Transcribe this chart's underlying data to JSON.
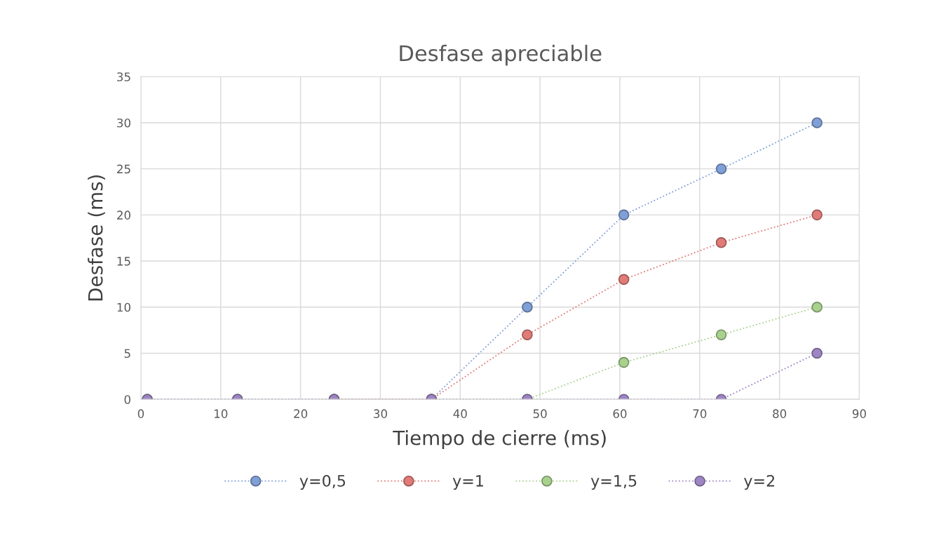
{
  "chart_data": {
    "type": "line",
    "title": "Desfase apreciable",
    "xlabel": "Tiempo de cierre (ms)",
    "ylabel": "Desfase (ms)",
    "x": [
      0.8,
      12.1,
      24.2,
      36.4,
      48.4,
      60.5,
      72.7,
      84.7
    ],
    "series": [
      {
        "name": "y=0,5",
        "color": "#7f9fd6",
        "values": [
          0,
          0,
          0,
          0,
          10,
          20,
          25,
          30
        ]
      },
      {
        "name": "y=1",
        "color": "#e07b77",
        "values": [
          null,
          null,
          0,
          0,
          7,
          13,
          17,
          20
        ]
      },
      {
        "name": "y=1,5",
        "color": "#a9d18e",
        "values": [
          0,
          0,
          0,
          0,
          0,
          4,
          7,
          10
        ]
      },
      {
        "name": "y=2",
        "color": "#9e86c4",
        "values": [
          0,
          0,
          0,
          0,
          0,
          0,
          0,
          5
        ]
      }
    ],
    "xlim": [
      0,
      90
    ],
    "xticks": [
      0,
      10,
      20,
      30,
      40,
      50,
      60,
      70,
      80,
      90
    ],
    "ylim": [
      0,
      35
    ],
    "yticks": [
      0,
      5,
      10,
      15,
      20,
      25,
      30,
      35
    ],
    "grid": true,
    "legend": "bottom",
    "marker": "circle",
    "line_style": "dotted"
  }
}
